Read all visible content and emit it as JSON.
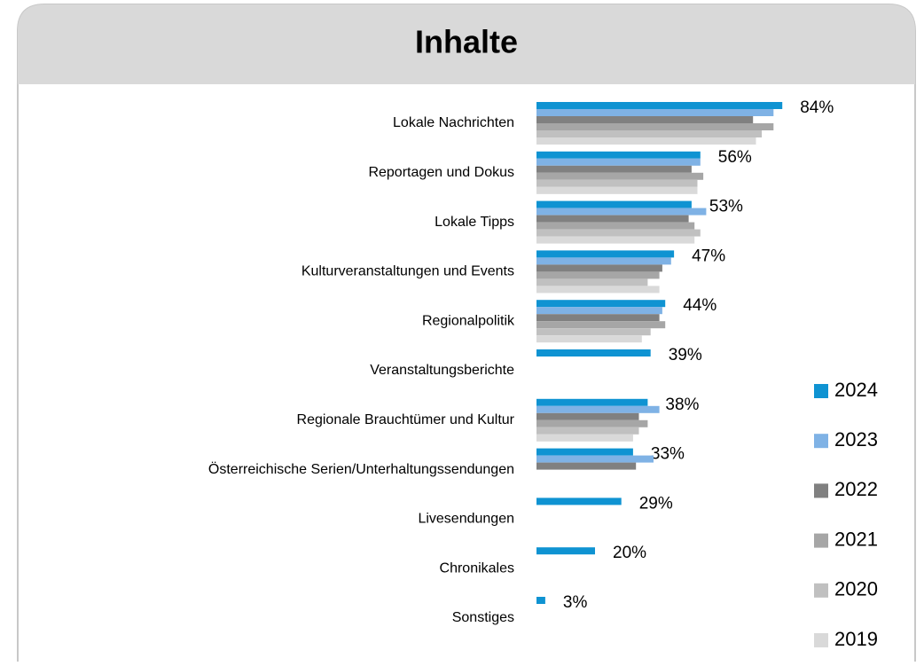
{
  "chart_data": {
    "type": "bar",
    "orientation": "horizontal",
    "title": "Inhalte",
    "categories": [
      "Lokale Nachrichten",
      "Reportagen und Dokus",
      "Lokale Tipps",
      "Kulturveranstaltungen und Events",
      "Regionalpolitik",
      "Veranstaltungsberichte",
      "Regionale Brauchtümer und Kultur",
      "Österreichische Serien/Unterhaltungssendungen",
      "Livesendungen",
      "Chronikales",
      "Sonstiges"
    ],
    "series": [
      {
        "name": "2024",
        "color": "#0f93d2",
        "values": [
          84,
          56,
          53,
          47,
          44,
          39,
          38,
          33,
          29,
          20,
          3
        ],
        "value_labels": [
          "84%",
          "56%",
          "53%",
          "47%",
          "44%",
          "39%",
          "38%",
          "33%",
          "29%",
          "20%",
          "3%"
        ]
      },
      {
        "name": "2023",
        "color": "#7fb2e5",
        "values": [
          81,
          56,
          58,
          46,
          43,
          null,
          42,
          40,
          null,
          null,
          null
        ]
      },
      {
        "name": "2022",
        "color": "#808080",
        "values": [
          74,
          53,
          52,
          43,
          42,
          null,
          35,
          34,
          null,
          null,
          null
        ]
      },
      {
        "name": "2021",
        "color": "#a6a6a6",
        "values": [
          81,
          57,
          54,
          42,
          44,
          null,
          38,
          null,
          null,
          null,
          null
        ]
      },
      {
        "name": "2020",
        "color": "#c0c0c0",
        "values": [
          77,
          55,
          56,
          38,
          39,
          null,
          35,
          null,
          null,
          null,
          null
        ]
      },
      {
        "name": "2019",
        "color": "#d9d9d9",
        "values": [
          75,
          55,
          54,
          42,
          36,
          null,
          33,
          null,
          null,
          null,
          null
        ]
      }
    ],
    "legend": "right"
  }
}
